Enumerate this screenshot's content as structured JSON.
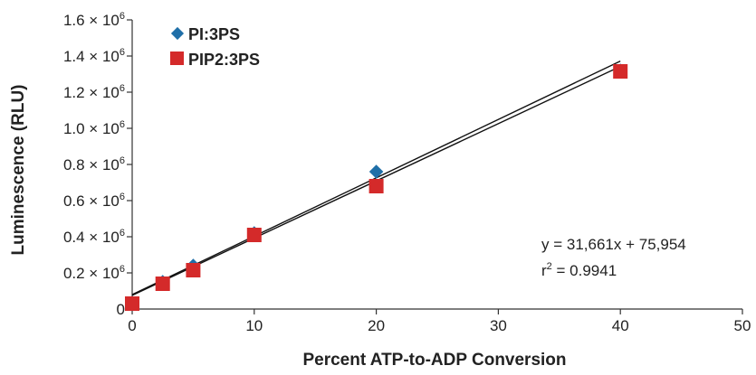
{
  "chart_data": {
    "type": "scatter",
    "xlabel": "Percent ATP-to-ADP Conversion",
    "ylabel": "Luminescence (RLU)",
    "xlim": [
      0,
      50
    ],
    "ylim": [
      0,
      1600000
    ],
    "x_ticks": [
      "0",
      "10",
      "20",
      "30",
      "40",
      "50"
    ],
    "y_ticks": [
      {
        "value": 0,
        "label": "0"
      },
      {
        "value": 200000,
        "mantissa": "0.2 × 10",
        "exp": "6"
      },
      {
        "value": 400000,
        "mantissa": "0.4 × 10",
        "exp": "6"
      },
      {
        "value": 600000,
        "mantissa": "0.6 × 10",
        "exp": "6"
      },
      {
        "value": 800000,
        "mantissa": "0.8 × 10",
        "exp": "6"
      },
      {
        "value": 1000000,
        "mantissa": "1.0 × 10",
        "exp": "6"
      },
      {
        "value": 1200000,
        "mantissa": "1.2 × 10",
        "exp": "6"
      },
      {
        "value": 1400000,
        "mantissa": "1.4 × 10",
        "exp": "6"
      },
      {
        "value": 1600000,
        "mantissa": "1.6 × 10",
        "exp": "6"
      }
    ],
    "grid": false,
    "legend_position": "top-left",
    "series": [
      {
        "name": "PI:3PS",
        "marker": "diamond",
        "color": "#1f6fa8",
        "points": [
          [
            0,
            30000
          ],
          [
            2.5,
            150000
          ],
          [
            5,
            240000
          ],
          [
            10,
            420000
          ],
          [
            20,
            760000
          ],
          [
            40,
            1320000
          ]
        ],
        "fit": {
          "slope": 32300,
          "intercept": 80000
        }
      },
      {
        "name": "PIP2:3PS",
        "marker": "square",
        "color": "#d42a2a",
        "points": [
          [
            0,
            30000
          ],
          [
            2.5,
            140000
          ],
          [
            5,
            215000
          ],
          [
            10,
            410000
          ],
          [
            20,
            680000
          ],
          [
            40,
            1315000
          ]
        ],
        "fit": {
          "slope": 31661,
          "intercept": 75954
        }
      }
    ],
    "annotations": {
      "equation": "y = 31,661x + 75,954",
      "r2_prefix": "r",
      "r2_sup": "2",
      "r2_value": " = 0.9941"
    }
  }
}
